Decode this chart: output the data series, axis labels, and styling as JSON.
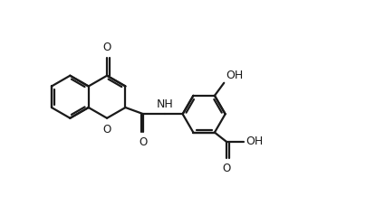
{
  "background": "#ffffff",
  "line_color": "#1a1a1a",
  "line_width": 1.6,
  "font_size": 8.5,
  "figsize": [
    4.04,
    2.38
  ],
  "dpi": 100,
  "xlim": [
    -3.5,
    5.0
  ],
  "ylim": [
    -2.5,
    2.5
  ]
}
